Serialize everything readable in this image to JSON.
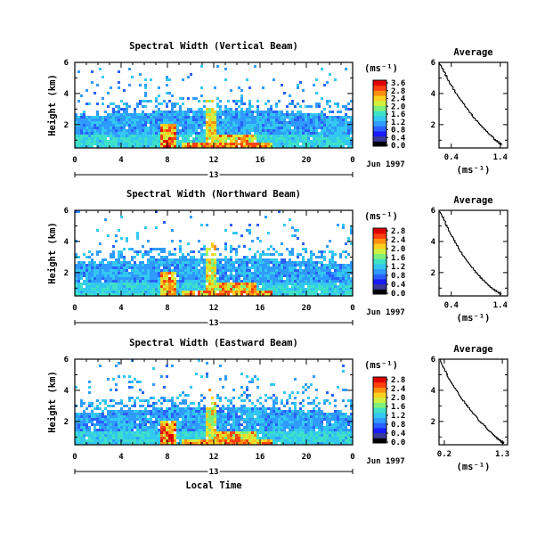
{
  "chart_data": [
    {
      "type": "heatmap",
      "title": "Spectral Width (Vertical Beam)",
      "ylabel": "Height (km)",
      "xlim": [
        0,
        24
      ],
      "ylim": [
        0.5,
        6
      ],
      "xticks": [
        "0",
        "4",
        "8",
        "12",
        "16",
        "20",
        "0"
      ],
      "yticks": [
        "2",
        "4",
        "6"
      ],
      "date_label": "13",
      "date_suffix": "Jun 1997",
      "colorbar": {
        "label": "(ms⁻¹)",
        "max": 3.6,
        "ticks": [
          "0.0",
          "0.4",
          "0.8",
          "1.2",
          "1.6",
          "2.0",
          "2.4",
          "2.8",
          "3.6"
        ]
      }
    },
    {
      "type": "line",
      "title": "Average",
      "xlabel": "(ms⁻¹)",
      "xticks": [
        "0.4",
        "1.4"
      ],
      "yticks": [
        "2",
        "4",
        "6"
      ],
      "xlim": [
        0.15,
        1.55
      ],
      "ylim": [
        0.5,
        6
      ],
      "x": [
        0.12,
        0.22,
        0.3,
        0.38,
        0.48,
        0.58,
        0.7,
        0.82,
        0.95,
        1.08,
        1.2,
        1.3,
        1.38,
        1.42
      ],
      "y": [
        6.0,
        5.6,
        5.1,
        4.6,
        4.1,
        3.6,
        3.1,
        2.6,
        2.1,
        1.7,
        1.3,
        1.0,
        0.8,
        0.7
      ]
    },
    {
      "type": "heatmap",
      "title": "Spectral Width (Northward Beam)",
      "ylabel": "Height (km)",
      "xlim": [
        0,
        24
      ],
      "ylim": [
        0.5,
        6
      ],
      "xticks": [
        "0",
        "4",
        "8",
        "12",
        "16",
        "20",
        "0"
      ],
      "yticks": [
        "2",
        "4",
        "6"
      ],
      "date_label": "13",
      "date_suffix": "Jun 1997",
      "colorbar": {
        "label": "(ms⁻¹)",
        "max": 2.8,
        "ticks": [
          "0.0",
          "0.4",
          "0.8",
          "1.2",
          "1.6",
          "2.0",
          "2.4",
          "2.8"
        ]
      }
    },
    {
      "type": "line",
      "title": "Average",
      "xlabel": "(ms⁻¹)",
      "xticks": [
        "0.4",
        "1.4"
      ],
      "yticks": [
        "2",
        "4",
        "6"
      ],
      "xlim": [
        0.15,
        1.55
      ],
      "ylim": [
        0.5,
        6
      ],
      "x": [
        0.15,
        0.24,
        0.3,
        0.38,
        0.47,
        0.56,
        0.66,
        0.78,
        0.9,
        1.02,
        1.14,
        1.26,
        1.36,
        1.42
      ],
      "y": [
        6.0,
        5.5,
        5.0,
        4.5,
        4.0,
        3.5,
        3.0,
        2.5,
        2.0,
        1.6,
        1.2,
        0.9,
        0.7,
        0.6
      ]
    },
    {
      "type": "heatmap",
      "title": "Spectral Width (Eastward Beam)",
      "ylabel": "Height (km)",
      "xlim": [
        0,
        24
      ],
      "ylim": [
        0.5,
        6
      ],
      "xticks": [
        "0",
        "4",
        "8",
        "12",
        "16",
        "20",
        "0"
      ],
      "yticks": [
        "2",
        "4",
        "6"
      ],
      "date_label": "13",
      "date_suffix": "Jun 1997",
      "colorbar": {
        "label": "(ms⁻¹)",
        "max": 2.8,
        "ticks": [
          "0.0",
          "0.4",
          "0.8",
          "1.2",
          "1.6",
          "2.0",
          "2.4",
          "2.8"
        ]
      }
    },
    {
      "type": "line",
      "title": "Average",
      "xlabel": "(ms⁻¹)",
      "xticks": [
        "0.2",
        "1.3"
      ],
      "yticks": [
        "2",
        "4",
        "6"
      ],
      "xlim": [
        0.1,
        1.4
      ],
      "ylim": [
        0.5,
        6
      ],
      "x": [
        0.12,
        0.18,
        0.25,
        0.33,
        0.42,
        0.52,
        0.63,
        0.75,
        0.87,
        0.99,
        1.1,
        1.2,
        1.28,
        1.32
      ],
      "y": [
        6.0,
        5.5,
        5.0,
        4.5,
        4.0,
        3.5,
        3.0,
        2.5,
        2.0,
        1.6,
        1.2,
        0.9,
        0.7,
        0.6
      ]
    }
  ],
  "bottom_xlabel": "Local Time"
}
